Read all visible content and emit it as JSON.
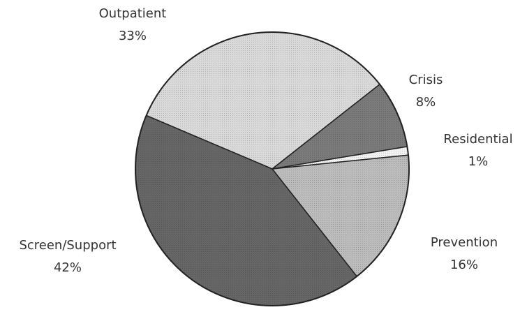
{
  "chart_data": {
    "type": "pie",
    "categories": [
      "Outpatient",
      "Crisis",
      "Residential",
      "Prevention",
      "Screen/Support"
    ],
    "values": [
      33,
      8,
      1,
      16,
      42
    ],
    "value_labels": [
      "33%",
      "8%",
      "1%",
      "16%",
      "42%"
    ],
    "colors": [
      "#d9d9d9",
      "#7a7a7a",
      "#f2f2f2",
      "#bcbcbc",
      "#666666"
    ]
  }
}
